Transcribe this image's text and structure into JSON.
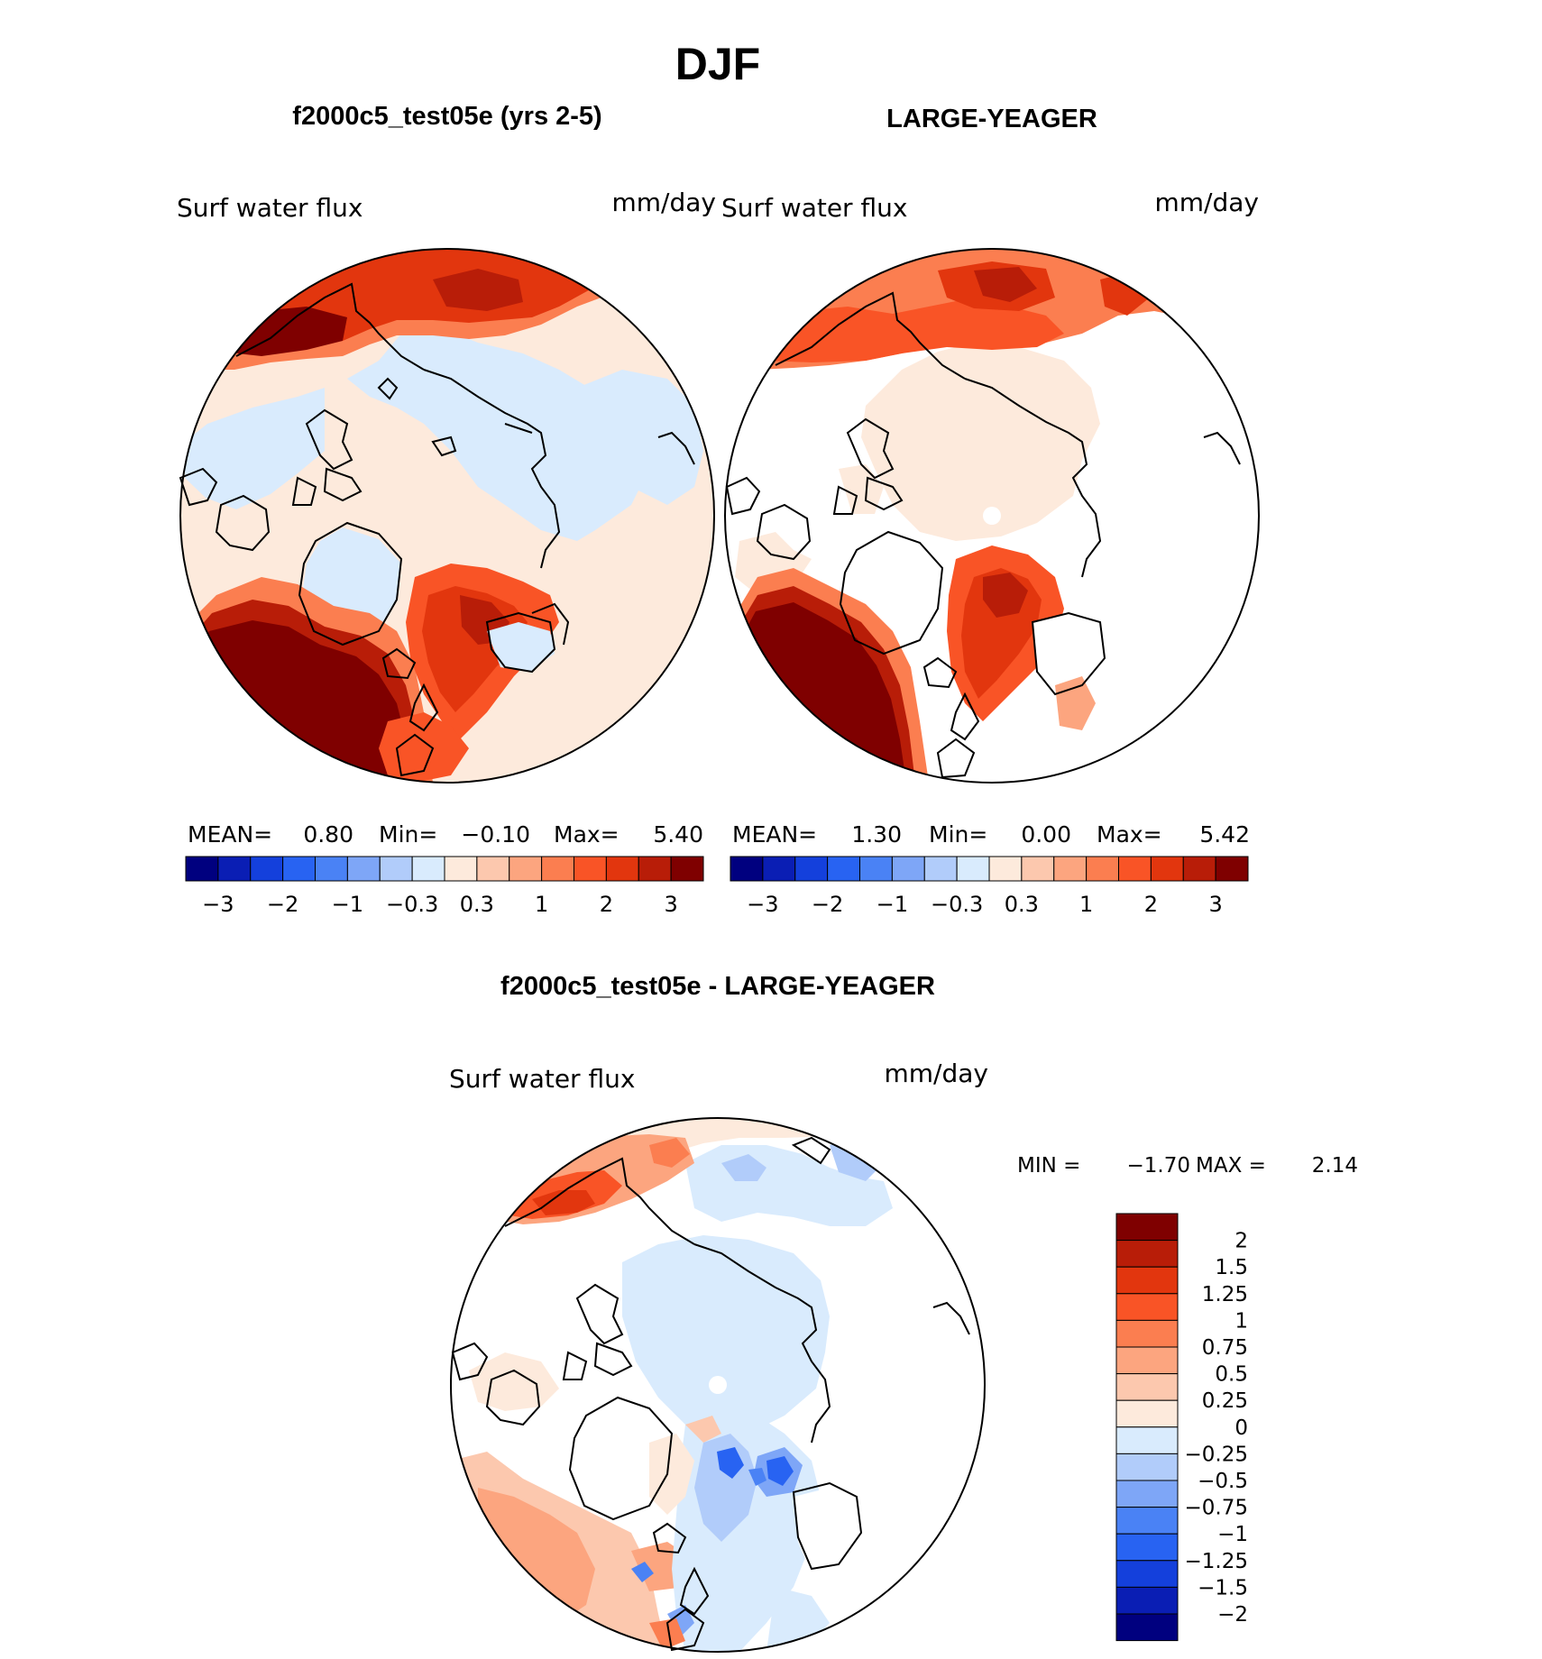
{
  "figure": {
    "season": "DJF",
    "colors": {
      "diverging": [
        "#00007f",
        "#0a1eb4",
        "#1440dc",
        "#2863f2",
        "#4a82f5",
        "#7ea6f7",
        "#b1ccfa",
        "#d9ebfd",
        "#fdeadc",
        "#fcc8ae",
        "#fca57f",
        "#fb7e50",
        "#f95426",
        "#e2360e",
        "#b81d08",
        "#7f0000"
      ]
    },
    "panels": [
      {
        "title": "f2000c5_test05e (yrs 2-5)",
        "variable": "Surf water flux",
        "units": "mm/day",
        "stats": {
          "mean_label": "MEAN=",
          "mean": "0.80",
          "min_label": "Min=",
          "min": "−0.10",
          "max_label": "Max=",
          "max": "5.40"
        }
      },
      {
        "title": "LARGE-YEAGER",
        "variable": "Surf water flux",
        "units": "mm/day",
        "stats": {
          "mean_label": "MEAN=",
          "mean": "1.30",
          "min_label": "Min=",
          "min": "0.00",
          "max_label": "Max=",
          "max": "5.42"
        }
      }
    ],
    "top_colorbar_ticks": [
      "−3",
      "−2",
      "−1",
      "−0.3",
      "0.3",
      "1",
      "2",
      "3"
    ],
    "difference": {
      "title": "f2000c5_test05e - LARGE-YEAGER",
      "variable": "Surf water flux",
      "units": "mm/day",
      "min_label": "MIN =",
      "min": "−1.70",
      "max_label": "MAX =",
      "max": "2.14",
      "colorbar_labels": [
        "2",
        "1.5",
        "1.25",
        "1",
        "0.75",
        "0.5",
        "0.25",
        "0",
        "−0.25",
        "−0.5",
        "−0.75",
        "−1",
        "−1.25",
        "−1.5",
        "−2"
      ],
      "colorbar_colors": [
        "#7f0000",
        "#b81d08",
        "#e2360e",
        "#f95426",
        "#fb7e50",
        "#fca57f",
        "#fcc8ae",
        "#fdeadc",
        "#d9ebfd",
        "#b1ccfa",
        "#7ea6f7",
        "#4a82f5",
        "#2863f2",
        "#1440dc",
        "#0a1eb4",
        "#00007f"
      ]
    }
  },
  "chart_data": [
    {
      "type": "heatmap",
      "title": "f2000c5_test05e (yrs 2-5)",
      "variable": "Surf water flux",
      "units": "mm/day",
      "projection": "north polar stereographic",
      "mean": 0.8,
      "min": -0.1,
      "max": 5.4,
      "colorbar_ticks": [
        -3,
        -2,
        -1,
        -0.3,
        0.3,
        1,
        2,
        3
      ]
    },
    {
      "type": "heatmap",
      "title": "LARGE-YEAGER",
      "variable": "Surf water flux",
      "units": "mm/day",
      "projection": "north polar stereographic",
      "mean": 1.3,
      "min": 0.0,
      "max": 5.42,
      "colorbar_ticks": [
        -3,
        -2,
        -1,
        -0.3,
        0.3,
        1,
        2,
        3
      ]
    },
    {
      "type": "heatmap",
      "title": "f2000c5_test05e - LARGE-YEAGER",
      "variable": "Surf water flux",
      "units": "mm/day",
      "projection": "north polar stereographic",
      "min": -1.7,
      "max": 2.14,
      "colorbar_levels": [
        -2,
        -1.5,
        -1.25,
        -1,
        -0.75,
        -0.5,
        -0.25,
        0,
        0.25,
        0.5,
        0.75,
        1,
        1.25,
        1.5,
        2
      ]
    }
  ]
}
